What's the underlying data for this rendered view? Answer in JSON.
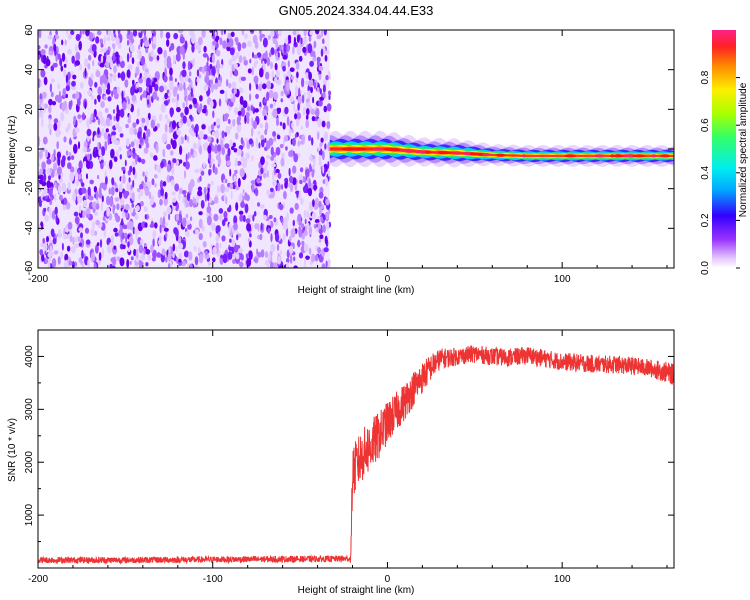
{
  "figure": {
    "title": "GN05.2024.334.04.44.E33"
  },
  "colors": {
    "snr_line": "#ee3333",
    "frame": "#000000",
    "background": "#ffffff"
  },
  "chart_data": [
    {
      "type": "heatmap",
      "xlabel": "Height of straight line (km)",
      "ylabel": "Frequency (Hz)",
      "xlim": [
        -200,
        164
      ],
      "ylim": [
        -60,
        60
      ],
      "xticks": [
        "-200",
        "-100",
        "0",
        "100"
      ],
      "yticks": [
        "-60",
        "-40",
        "-20",
        "0",
        "20",
        "40",
        "60"
      ],
      "colorbar": {
        "label": "Normalized spectral amplitude",
        "range": [
          0.0,
          1.0
        ],
        "ticks": [
          "0.0",
          "0.2",
          "0.4",
          "0.6",
          "0.8"
        ],
        "colormap": "rainbow (violet = low, red/magenta = high)"
      },
      "regions": [
        {
          "x_range": [
            -200,
            -33
          ],
          "y_range": [
            -60,
            60
          ],
          "description": "noise: scattered violet blobs, amplitude 0.0-0.2"
        },
        {
          "x_range": [
            -33,
            164
          ],
          "y_range": [
            -60,
            60
          ],
          "description": "blank (no amplitude) except signal band"
        }
      ],
      "signal_band": {
        "x": [
          -33,
          0,
          20,
          40,
          60,
          80,
          100,
          120,
          140,
          164
        ],
        "center_freq_hz": [
          0,
          0,
          -1.5,
          -2,
          -3,
          -3.5,
          -3.5,
          -3.5,
          -3.5,
          -3.5
        ],
        "half_width_hz": [
          2.5,
          2.5,
          2,
          2,
          1.5,
          1.5,
          1.5,
          1.5,
          1.5,
          1.5
        ],
        "peak_amplitude": [
          0.95,
          0.95,
          0.9,
          0.85,
          0.9,
          0.95,
          0.95,
          0.9,
          0.9,
          0.85
        ]
      }
    },
    {
      "type": "line",
      "xlabel": "Height of straight line (km)",
      "ylabel": "SNR (10 * v/v)",
      "xlim": [
        -200,
        164
      ],
      "ylim": [
        0,
        4500
      ],
      "xticks": [
        "-200",
        "-100",
        "0",
        "100"
      ],
      "yticks": [
        "1000",
        "2000",
        "3000",
        "4000"
      ],
      "grid": false,
      "series": [
        {
          "x": [
            -200,
            -150,
            -100,
            -50,
            -21,
            -20,
            -15,
            -10,
            -5,
            0,
            5,
            10,
            15,
            20,
            25,
            30,
            40,
            50,
            60,
            70,
            80,
            90,
            100,
            110,
            120,
            130,
            140,
            150,
            160,
            164
          ],
          "y": [
            150,
            150,
            160,
            170,
            175,
            1800,
            2100,
            2300,
            2500,
            2750,
            2950,
            3150,
            3400,
            3600,
            3800,
            3950,
            4000,
            4050,
            4000,
            3980,
            4020,
            3960,
            3900,
            3880,
            3850,
            3850,
            3820,
            3780,
            3700,
            3650
          ],
          "noise_amplitude": [
            60,
            60,
            60,
            60,
            60,
            500,
            500,
            500,
            450,
            400,
            380,
            360,
            330,
            300,
            250,
            200,
            170,
            170,
            170,
            170,
            170,
            170,
            170,
            170,
            170,
            170,
            170,
            170,
            200,
            200
          ]
        }
      ]
    }
  ]
}
